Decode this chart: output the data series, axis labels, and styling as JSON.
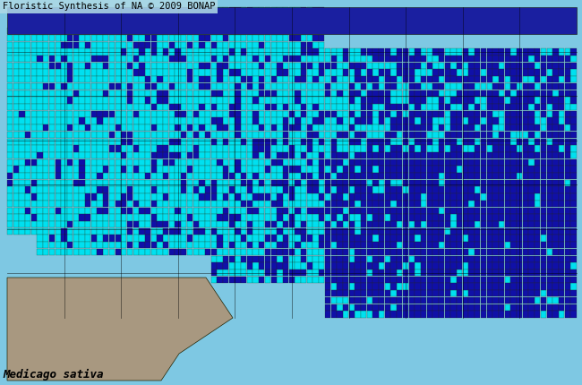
{
  "title_top": "Floristic Synthesis of NA © 2009 BONAP",
  "label_bottom": "Medicago sativa",
  "background_color": "#7EC8E3",
  "mexico_color": "#A89880",
  "canada_color": "#1A1FA0",
  "county_cyan_color": "#00E0F0",
  "county_blue_color": "#1010A8",
  "county_border_color": "#2A2A00",
  "state_border_color": "#000000",
  "title_bg_color": "#ADD8E6",
  "title_fontsize": 7.5,
  "label_fontsize": 9,
  "figsize": [
    6.5,
    4.3
  ],
  "dpi": 100,
  "xlim": [
    -130,
    -60
  ],
  "ylim": [
    22,
    55
  ],
  "seed": 42,
  "west_cyan_prob": 0.82,
  "east_blue_prob": 0.78
}
